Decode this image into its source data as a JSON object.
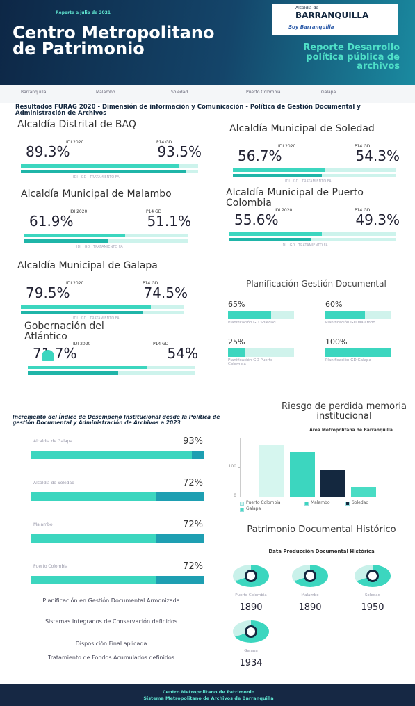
{
  "header": {
    "date": "Reporte a julio de 2021",
    "title": "Centro Metropolitano de Patrimonio",
    "subtitle": "Reporte Desarrollo política pública de archivos",
    "logo_top": "Alcaldía de",
    "logo_main": "Barranquilla",
    "logo_tag": "Soy Barranquilla"
  },
  "partners": [
    "Barranquilla",
    "Malambo",
    "Soledad",
    "Puerto Colombia",
    "Galapa"
  ],
  "furag": {
    "heading": "Resultados FURAG 2020 - Dimensión de información y Comunicación - Política de Gestión Documental y Administración de Archivos",
    "idi_label": "IDI 2020",
    "gd_label": "P14 GD",
    "legend": "IDI   GD   TRATAMIENTO FA",
    "entities": [
      {
        "name": "Alcaldía Distrital de BAQ",
        "idi": {
          "value": 89.3,
          "label": "89.3%"
        },
        "gd": {
          "value": 93.5,
          "label": "93.5%"
        }
      },
      {
        "name": "Alcaldía Municipal de Soledad",
        "idi": {
          "value": 56.7,
          "label": "56.7%"
        },
        "gd": {
          "value": 54.3,
          "label": "54.3%"
        }
      },
      {
        "name": "Alcaldía Municipal de Malambo",
        "idi": {
          "value": 61.9,
          "label": "61.9%"
        },
        "gd": {
          "value": 51.1,
          "label": "51.1%"
        }
      },
      {
        "name": "Alcaldía Municipal de Puerto Colombia",
        "idi": {
          "value": 55.6,
          "label": "55.6%"
        },
        "gd": {
          "value": 49.3,
          "label": "49.3%"
        }
      },
      {
        "name": "Alcaldía Municipal de Galapa",
        "idi": {
          "value": 79.5,
          "label": "79.5%"
        },
        "gd": {
          "value": 74.5,
          "label": "74.5%"
        }
      },
      {
        "name": "Gobernación del Atlántico",
        "idi": {
          "value": 71.7,
          "label": "71.7%"
        },
        "gd": {
          "value": 54,
          "label": "54%"
        }
      }
    ]
  },
  "planning": {
    "title": "Planificación Gestión Documental",
    "items": [
      {
        "value": 65,
        "label": "65%",
        "caption": "Planificación GD Soledad"
      },
      {
        "value": 60,
        "label": "60%",
        "caption": "Planificación GD Malambo"
      },
      {
        "value": 25,
        "label": "25%",
        "caption": "Planificación GD Puerto Colombia"
      },
      {
        "value": 100,
        "label": "100%",
        "caption": "Planificación GD Galapa"
      }
    ]
  },
  "increment": {
    "title": "Incremento del Índice de Desempeño Institucional desde la Política de gestión Documental y Administración de Archivos a 2023",
    "items": [
      {
        "name": "Alcaldía de Galapa",
        "value": 93,
        "label": "93%"
      },
      {
        "name": "Alcaldía de Soledad",
        "value": 72,
        "label": "72%"
      },
      {
        "name": "Malambo",
        "value": 72,
        "label": "72%"
      },
      {
        "name": "Puerto Colombia",
        "value": 72,
        "label": "72%"
      }
    ]
  },
  "risk": {
    "type": "bar",
    "title": "Riesgo de perdida memoria institucional",
    "subtitle": "Área Metropolitana de Barranquilla",
    "ylim": [
      0,
      200
    ],
    "yticks": [
      0,
      100
    ],
    "series": [
      {
        "name": "Puerto Colombia",
        "color": "#d6f6ef",
        "value": 176
      },
      {
        "name": "Malambo",
        "color": "#3cd6bf",
        "value": 152
      },
      {
        "name": "Soledad",
        "color": "#14283f",
        "value": 93
      },
      {
        "name": "Galapa",
        "color": "#49dcc4",
        "value": 33
      }
    ]
  },
  "heritage": {
    "title": "Patrimonio Documental Histórico",
    "subtitle": "Data Producción Documental Histórica",
    "items": [
      {
        "name": "Puerto Colombia",
        "year": 1890
      },
      {
        "name": "Malambo",
        "year": 1890
      },
      {
        "name": "Soledad",
        "year": 1950
      },
      {
        "name": "Galapa",
        "year": 1934
      }
    ]
  },
  "achievements": [
    "Planificación en Gestión Documental Armonizada",
    "Sistemas Integrados de Conservación definidos",
    "Disposición Final aplicada",
    "Tratamiento de Fondos Acumulados definidos"
  ],
  "footer": [
    "Centro Metropolitano de Patrimonio",
    "Sistema Metropolitano de Archivos de Barranquilla"
  ]
}
